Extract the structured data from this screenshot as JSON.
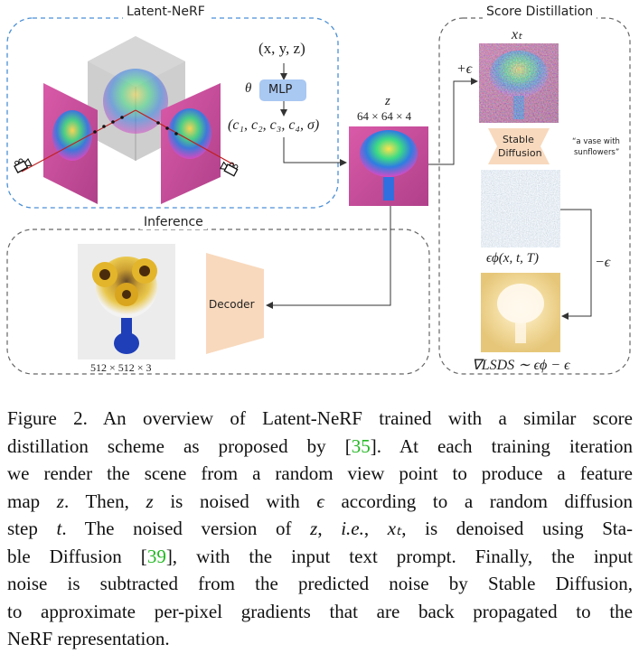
{
  "panels": {
    "latent_nerf": "Latent-NeRF",
    "score_distillation": "Score Distillation",
    "inference": "Inference"
  },
  "labels": {
    "xyz": "(x, y, z)",
    "theta": "θ",
    "mlp": "MLP",
    "outputs": "(c₁, c₂, c₃, c₄, σ)",
    "z": "z",
    "z_dims": "64 × 64 × 4",
    "plus_eps": "+ϵ",
    "xt": "xₜ",
    "stable_diffusion_1": "Stable",
    "stable_diffusion_2": "Diffusion",
    "prompt_1": "“a vase with",
    "prompt_2": "sunflowers”",
    "eps_phi": "ϵϕ(x, t, T)",
    "minus_eps": "−ϵ",
    "grad": "∇LSDS ∼ ϵϕ − ϵ",
    "decoder": "Decoder",
    "output_dims": "512 × 512 × 3"
  },
  "caption": {
    "l1a": "Figure 2. An overview of Latent-NeRF trained with a similar score",
    "l2a": "distillation scheme as proposed by [",
    "ref1": "35",
    "l2b": "]. At each training iteration",
    "l3a": "we render the scene from a random view point to produce a feature",
    "l4a": "map ",
    "l4z": "z",
    "l4b": ". Then, ",
    "l4z2": "z",
    "l4c": " is noised with ",
    "l4e": "ϵ",
    "l4d": " according to a random diffusion",
    "l5a": "step ",
    "l5t": "t",
    "l5b": ". The noised version of ",
    "l5z": "z",
    "l5c": ", ",
    "l5ie": "i.e.",
    "l5d": ", ",
    "l5x": "xₜ",
    "l5e": ", is denoised using Sta-",
    "l6a": "ble Diffusion [",
    "ref2": "39",
    "l6b": "], with the input text prompt. Finally, the input",
    "l7a": "noise is subtracted from the predicted noise by Stable Diffusion,",
    "l8a": "to approximate per-pixel gradients that are back propagated to the",
    "l9a": "NeRF representation."
  },
  "colors": {
    "latent_box": "#4a8fd6",
    "mlp_fill": "#a9c8f2",
    "diffusion_fill": "#f8d9bd",
    "link_green": "#22b822"
  }
}
